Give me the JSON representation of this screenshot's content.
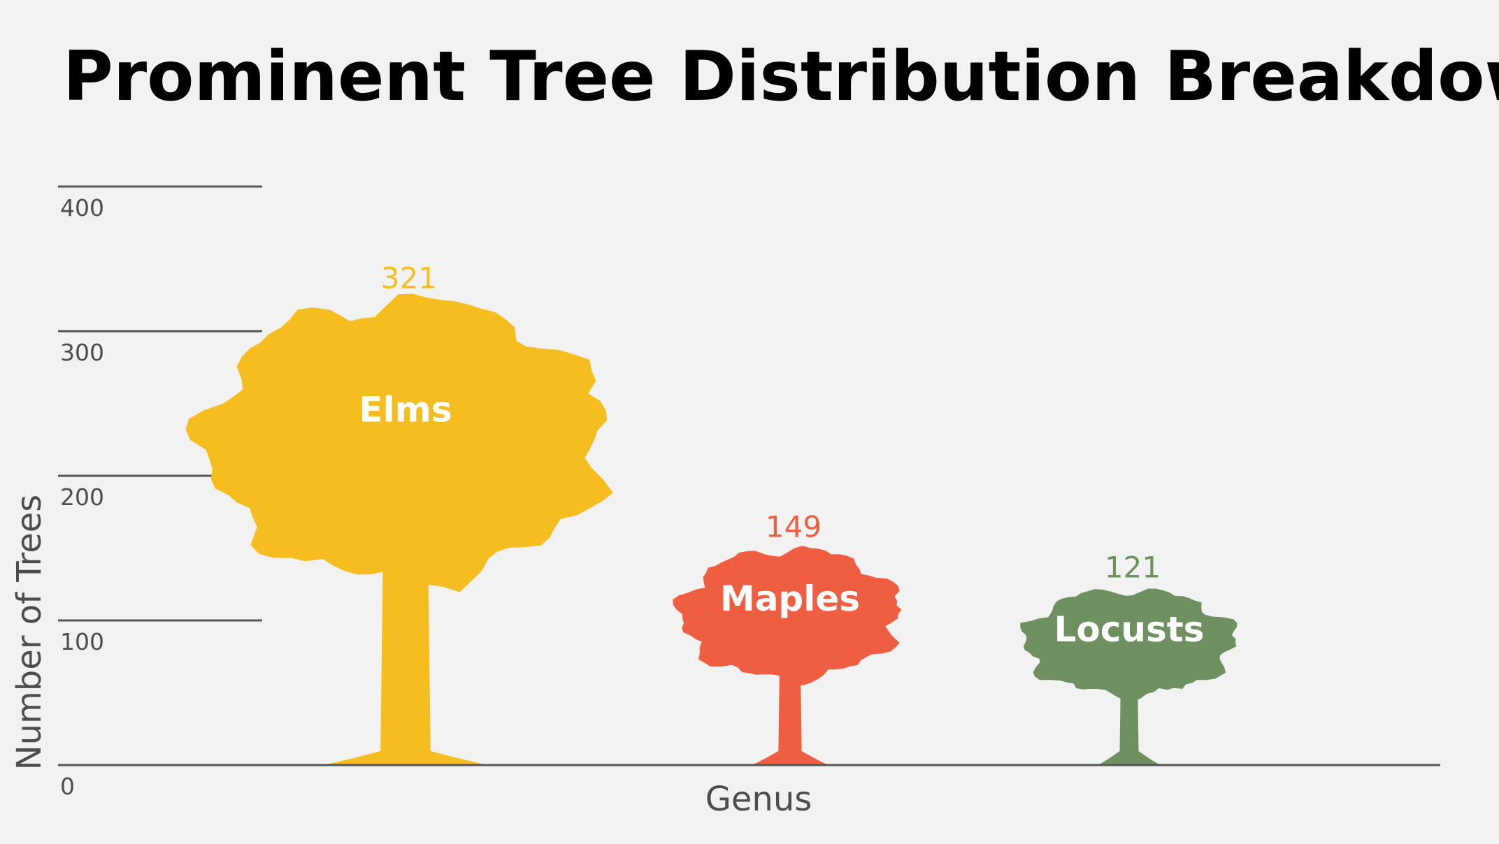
{
  "chart_data": {
    "type": "bar",
    "title": "Prominent Tree Distribution Breakdown",
    "xlabel": "Genus",
    "ylabel": "Number of Trees",
    "categories": [
      "Elms",
      "Maples",
      "Locusts"
    ],
    "values": [
      321,
      149,
      121
    ],
    "value_labels": [
      "321",
      "149",
      "121"
    ],
    "colors": [
      "#f6bd20",
      "#ef5e40",
      "#6f9060"
    ],
    "y_ticks": [
      0,
      100,
      200,
      300,
      400
    ],
    "y_tick_labels": [
      "0",
      "100",
      "200",
      "300",
      "400"
    ],
    "ylim": [
      0,
      400
    ],
    "grid": true,
    "legend": "none",
    "mark_shape": "tree-silhouette"
  }
}
